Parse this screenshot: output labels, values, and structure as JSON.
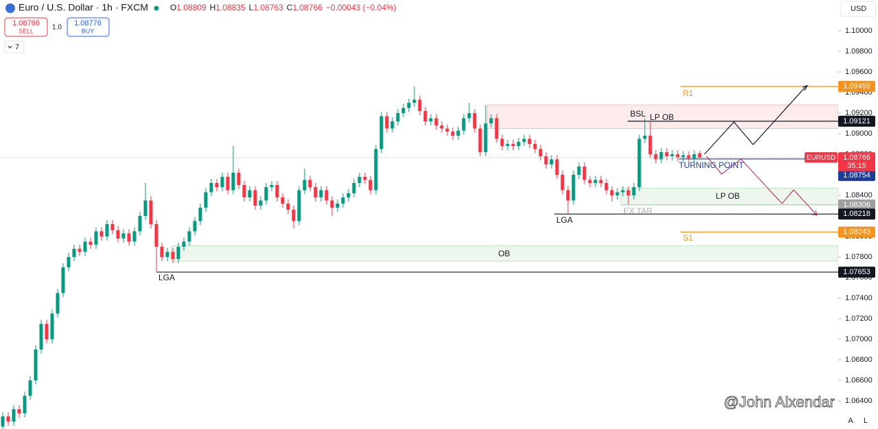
{
  "header": {
    "symbol": "Euro / U.S. Dollar · 1h · FXCM",
    "o_label": "O",
    "open": "1.08809",
    "h_label": "H",
    "high": "1.08835",
    "l_label": "L",
    "low": "1.08763",
    "c_label": "C",
    "close": "1.08766",
    "change": "−0.00043 (−0.04%)"
  },
  "trade": {
    "sell_price": "1.08766",
    "sell": "SELL",
    "qty": "1.0",
    "buy_price": "1.08776",
    "buy": "BUY"
  },
  "indicators": "7",
  "currency": "USD",
  "watermark": "@John Alxendar",
  "scale_buttons": [
    "A",
    "L"
  ],
  "annotations": {
    "bsl": "BSL",
    "lp_ob_top": "LP OB",
    "turning_point": "TURNING POINT",
    "lp_ob_bottom": "LP OB",
    "ex_tar": "EX TAR",
    "lga_left": "LGA",
    "lga_right": "LGA",
    "ob": "OB",
    "r1": "R1",
    "s1": "S1"
  },
  "chart_data": {
    "type": "candlestick",
    "up_color": "#089981",
    "down_color": "#f23645",
    "open": [
      1.0615,
      1.0625,
      1.062,
      1.0632,
      1.0628,
      1.0645,
      1.066,
      1.069,
      1.0715,
      1.07,
      1.0725,
      1.0745,
      1.077,
      1.078,
      1.0788,
      1.0785,
      1.0795,
      1.0792,
      1.0805,
      1.08,
      1.0812,
      1.0806,
      1.0798,
      1.0803,
      1.0795,
      1.0805,
      1.082,
      1.0835,
      1.0812,
      1.079,
      1.078,
      1.0785,
      1.0778,
      1.079,
      1.0795,
      1.0805,
      1.0815,
      1.0828,
      1.0843,
      1.0852,
      1.0848,
      1.0858,
      1.0845,
      1.0862,
      1.085,
      1.0838,
      1.0845,
      1.083,
      1.0835,
      1.0848,
      1.085,
      1.0838,
      1.0832,
      1.0826,
      1.0815,
      1.0845,
      1.0855,
      1.0848,
      1.0838,
      1.0845,
      1.0835,
      1.0828,
      1.0832,
      1.0838,
      1.0842,
      1.0852,
      1.0858,
      1.0855,
      1.0845,
      1.0885,
      1.0917,
      1.0905,
      1.0912,
      1.092,
      1.0925,
      1.093,
      1.0933,
      1.0922,
      1.0912,
      1.0915,
      1.0908,
      1.0905,
      1.0902,
      1.0898,
      1.0903,
      1.0915,
      1.092,
      1.0905,
      1.0882,
      1.091,
      1.0915,
      1.0895,
      1.0888,
      1.089,
      1.0888,
      1.0892,
      1.0895,
      1.089,
      1.0885,
      1.0878,
      1.087,
      1.0875,
      1.086,
      1.0845,
      1.0835,
      1.086,
      1.0868,
      1.0855,
      1.0852,
      1.0855,
      1.0852,
      1.0845,
      1.084,
      1.0843,
      1.0845,
      1.084,
      1.0848,
      1.0895,
      1.0898,
      1.088,
      1.0875,
      1.0882,
      1.0878,
      1.088,
      1.0877,
      1.0879,
      1.0876,
      1.08809
    ],
    "high": [
      1.0629,
      1.0629,
      1.0636,
      1.0636,
      1.0649,
      1.0664,
      1.0694,
      1.0719,
      1.0719,
      1.0729,
      1.0749,
      1.0774,
      1.0784,
      1.0792,
      1.0792,
      1.0799,
      1.0799,
      1.0809,
      1.0809,
      1.0816,
      1.0816,
      1.081,
      1.0807,
      1.0807,
      1.0809,
      1.0824,
      1.0852,
      1.0839,
      1.0816,
      1.0794,
      1.0789,
      1.0789,
      1.0794,
      1.0799,
      1.0809,
      1.0819,
      1.0832,
      1.0847,
      1.0856,
      1.0856,
      1.0862,
      1.0862,
      1.0888,
      1.0866,
      1.0854,
      1.0849,
      1.0849,
      1.0839,
      1.0852,
      1.0854,
      1.0854,
      1.0842,
      1.0836,
      1.083,
      1.0849,
      1.0866,
      1.0859,
      1.0852,
      1.0849,
      1.0849,
      1.0839,
      1.0836,
      1.0842,
      1.0846,
      1.0856,
      1.0862,
      1.0862,
      1.0859,
      1.0889,
      1.0921,
      1.0921,
      1.0916,
      1.0924,
      1.0929,
      1.0934,
      1.0946,
      1.0937,
      1.0926,
      1.0919,
      1.0919,
      1.0912,
      1.0909,
      1.0906,
      1.0907,
      1.0919,
      1.093,
      1.0924,
      1.0909,
      1.0928,
      1.0919,
      1.0919,
      1.0899,
      1.0894,
      1.0894,
      1.0896,
      1.0899,
      1.0899,
      1.0894,
      1.0889,
      1.0882,
      1.0879,
      1.0879,
      1.0864,
      1.0849,
      1.0864,
      1.0872,
      1.0872,
      1.0859,
      1.0859,
      1.0859,
      1.0856,
      1.0849,
      1.0847,
      1.0849,
      1.0849,
      1.0852,
      1.0899,
      1.0915,
      1.0912,
      1.0884,
      1.0886,
      1.0886,
      1.0884,
      1.0884,
      1.0883,
      1.0883,
      1.0884,
      1.08835
    ],
    "low": [
      1.0611,
      1.0616,
      1.0616,
      1.0624,
      1.0624,
      1.0641,
      1.0656,
      1.0686,
      1.0696,
      1.0696,
      1.0721,
      1.0741,
      1.0766,
      1.0776,
      1.0781,
      1.0781,
      1.0788,
      1.0788,
      1.0796,
      1.0796,
      1.0802,
      1.0794,
      1.0794,
      1.0791,
      1.0791,
      1.0801,
      1.0816,
      1.0808,
      1.0766,
      1.0776,
      1.0776,
      1.0774,
      1.0774,
      1.0786,
      1.0791,
      1.0801,
      1.0811,
      1.0824,
      1.0839,
      1.0844,
      1.0844,
      1.0841,
      1.0841,
      1.0846,
      1.0834,
      1.0834,
      1.0826,
      1.0826,
      1.0831,
      1.0844,
      1.0834,
      1.0828,
      1.0822,
      1.0808,
      1.0811,
      1.0841,
      1.0844,
      1.0834,
      1.0834,
      1.0831,
      1.082,
      1.0824,
      1.0828,
      1.0834,
      1.0838,
      1.0848,
      1.0851,
      1.0841,
      1.0841,
      1.0881,
      1.0901,
      1.0901,
      1.0908,
      1.0916,
      1.0921,
      1.0926,
      1.0918,
      1.0908,
      1.0908,
      1.0904,
      1.0901,
      1.0898,
      1.0894,
      1.0894,
      1.0899,
      1.0911,
      1.0901,
      1.0878,
      1.0878,
      1.0906,
      1.0891,
      1.0884,
      1.0884,
      1.0884,
      1.0884,
      1.0888,
      1.0886,
      1.0881,
      1.0874,
      1.0866,
      1.0866,
      1.0856,
      1.0841,
      1.0822,
      1.0831,
      1.0856,
      1.0851,
      1.0848,
      1.0848,
      1.0848,
      1.0841,
      1.0834,
      1.0836,
      1.0839,
      1.0831,
      1.0836,
      1.0844,
      1.0891,
      1.0876,
      1.0871,
      1.0871,
      1.0874,
      1.0874,
      1.0873,
      1.0873,
      1.0872,
      1.0872,
      1.08763
    ],
    "close": [
      1.0625,
      1.062,
      1.0632,
      1.0628,
      1.0645,
      1.066,
      1.069,
      1.0715,
      1.07,
      1.0725,
      1.0745,
      1.077,
      1.078,
      1.0788,
      1.0785,
      1.0795,
      1.0792,
      1.0805,
      1.08,
      1.0812,
      1.0806,
      1.0798,
      1.0803,
      1.0795,
      1.0805,
      1.082,
      1.0835,
      1.0812,
      1.079,
      1.078,
      1.0785,
      1.0778,
      1.079,
      1.0795,
      1.0805,
      1.0815,
      1.0828,
      1.0843,
      1.0852,
      1.0848,
      1.0858,
      1.0845,
      1.0862,
      1.085,
      1.0838,
      1.0845,
      1.083,
      1.0835,
      1.0848,
      1.085,
      1.0838,
      1.0832,
      1.0826,
      1.0815,
      1.0845,
      1.0855,
      1.0848,
      1.0838,
      1.0845,
      1.0835,
      1.0828,
      1.0832,
      1.0838,
      1.0842,
      1.0852,
      1.0858,
      1.0855,
      1.0845,
      1.0885,
      1.0917,
      1.0905,
      1.0912,
      1.092,
      1.0925,
      1.093,
      1.0933,
      1.0922,
      1.0912,
      1.0915,
      1.0908,
      1.0905,
      1.0902,
      1.0898,
      1.0903,
      1.0915,
      1.092,
      1.0905,
      1.0882,
      1.091,
      1.0915,
      1.0895,
      1.0888,
      1.089,
      1.0888,
      1.0892,
      1.0895,
      1.089,
      1.0885,
      1.0878,
      1.087,
      1.0875,
      1.086,
      1.0845,
      1.0835,
      1.086,
      1.0868,
      1.0855,
      1.0852,
      1.0855,
      1.0852,
      1.0845,
      1.084,
      1.0843,
      1.0845,
      1.084,
      1.0848,
      1.0895,
      1.0898,
      1.088,
      1.0875,
      1.0882,
      1.0878,
      1.088,
      1.0877,
      1.0879,
      1.0876,
      1.088,
      1.08766
    ],
    "ylim": [
      1.06127,
      1.103
    ],
    "yticks": [
      {
        "value": 1.064,
        "label": "1.06400"
      },
      {
        "value": 1.066,
        "label": "1.06600"
      },
      {
        "value": 1.068,
        "label": "1.06800"
      },
      {
        "value": 1.07,
        "label": "1.07000"
      },
      {
        "value": 1.072,
        "label": "1.07200"
      },
      {
        "value": 1.074,
        "label": "1.07400"
      },
      {
        "value": 1.076,
        "label": "1.07600"
      },
      {
        "value": 1.078,
        "label": "1.07800"
      },
      {
        "value": 1.08,
        "label": "1.08000"
      },
      {
        "value": 1.082,
        "label": "1.08200"
      },
      {
        "value": 1.084,
        "label": "1.08400"
      },
      {
        "value": 1.086,
        "label": "1.08600"
      },
      {
        "value": 1.088,
        "label": "1.08800"
      },
      {
        "value": 1.09,
        "label": "1.09000"
      },
      {
        "value": 1.092,
        "label": "1.09200"
      },
      {
        "value": 1.094,
        "label": "1.09400"
      },
      {
        "value": 1.096,
        "label": "1.09600"
      },
      {
        "value": 1.098,
        "label": "1.09800"
      },
      {
        "value": 1.1,
        "label": "1.10000"
      }
    ],
    "zones": [
      {
        "low": 1.0905,
        "high": 1.0928,
        "color": "#f23645"
      },
      {
        "low": 1.0831,
        "high": 1.0847,
        "color": "#4caf50"
      },
      {
        "low": 1.0776,
        "high": 1.0791,
        "color": "#4caf50"
      }
    ],
    "levels": [
      {
        "value": 1.09459,
        "color": "#f7931a"
      },
      {
        "value": 1.09121,
        "color": "#131722"
      },
      {
        "value": 1.08754,
        "color": "#1c3c9c"
      },
      {
        "value": 1.08306,
        "color": "#9e9e9e"
      },
      {
        "value": 1.08218,
        "color": "#131722"
      },
      {
        "value": 1.08043,
        "color": "#f7931a"
      },
      {
        "value": 1.07653,
        "color": "#131722"
      }
    ],
    "last_price": {
      "value": 1.08766,
      "symbol": "EURUSD",
      "countdown": "35:15",
      "color": "#f23645"
    }
  }
}
